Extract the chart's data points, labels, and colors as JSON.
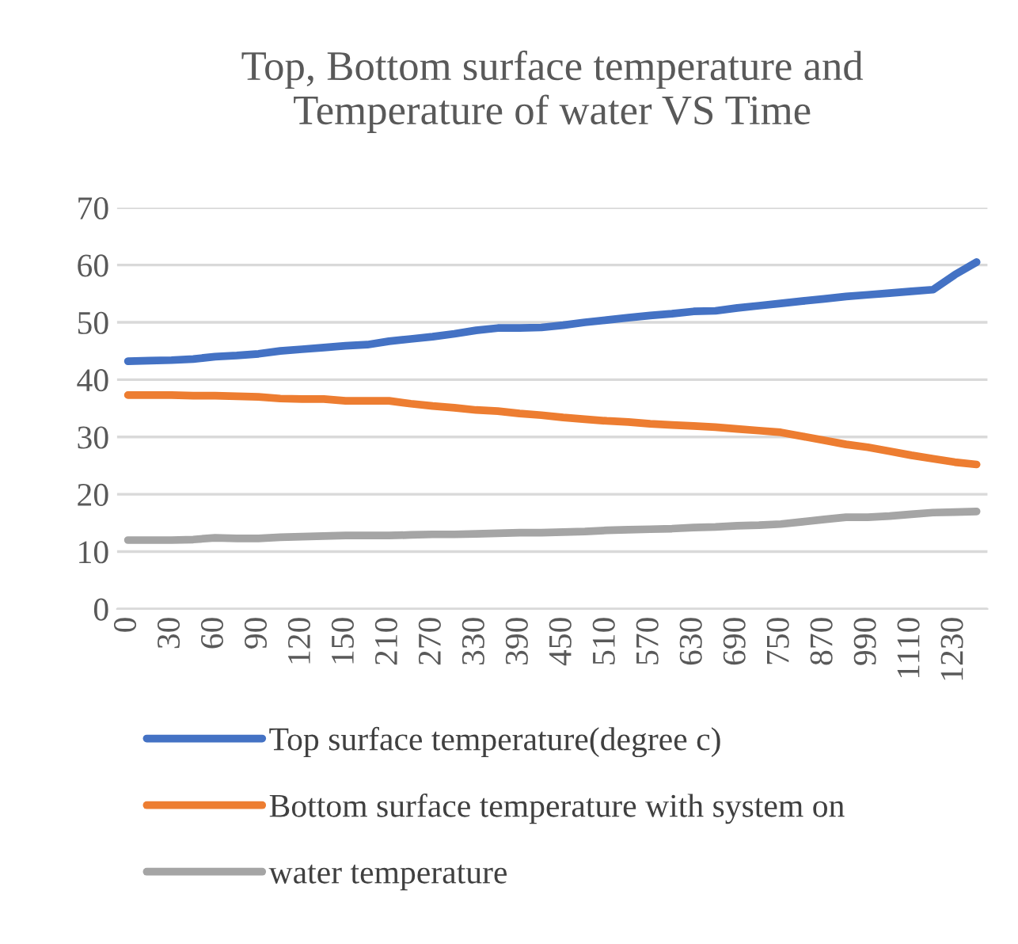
{
  "chart_data": {
    "type": "line",
    "title": "Top, Bottom surface temperature and\nTemperature of water VS Time",
    "categories": [
      "0",
      null,
      "30",
      null,
      "60",
      null,
      "90",
      null,
      "120",
      null,
      "150",
      null,
      "210",
      null,
      "270",
      null,
      "330",
      null,
      "390",
      null,
      "450",
      null,
      "510",
      null,
      "570",
      null,
      "630",
      null,
      "690",
      null,
      "750",
      null,
      "870",
      null,
      "990",
      null,
      "1110",
      null,
      "1230",
      null
    ],
    "series": [
      {
        "name": "Top surface temperature(degree c)",
        "color": "#4472c4",
        "values": [
          43.2,
          43.3,
          43.4,
          43.6,
          44.0,
          44.2,
          44.5,
          45.0,
          45.3,
          45.6,
          45.9,
          46.1,
          46.7,
          47.1,
          47.5,
          48.0,
          48.6,
          49.0,
          49.0,
          49.1,
          49.5,
          50.0,
          50.4,
          50.8,
          51.2,
          51.5,
          51.9,
          52.0,
          52.5,
          52.9,
          53.3,
          53.7,
          54.1,
          54.5,
          54.8,
          55.1,
          55.4,
          55.7,
          58.3,
          60.5
        ]
      },
      {
        "name": "Bottom surface temperature with system on",
        "color": "#ed7d31",
        "values": [
          37.3,
          37.3,
          37.3,
          37.2,
          37.2,
          37.1,
          37.0,
          36.7,
          36.6,
          36.6,
          36.3,
          36.3,
          36.3,
          35.8,
          35.4,
          35.1,
          34.7,
          34.5,
          34.1,
          33.8,
          33.4,
          33.1,
          32.8,
          32.6,
          32.3,
          32.1,
          31.9,
          31.7,
          31.4,
          31.1,
          30.8,
          30.1,
          29.4,
          28.7,
          28.2,
          27.5,
          26.8,
          26.2,
          25.6,
          25.2
        ]
      },
      {
        "name": "water temperature",
        "color": "#a5a5a5",
        "values": [
          12.0,
          12.0,
          12.0,
          12.1,
          12.4,
          12.3,
          12.3,
          12.5,
          12.6,
          12.7,
          12.8,
          12.8,
          12.8,
          12.9,
          13.0,
          13.0,
          13.1,
          13.2,
          13.3,
          13.3,
          13.4,
          13.5,
          13.7,
          13.8,
          13.9,
          14.0,
          14.2,
          14.3,
          14.5,
          14.6,
          14.8,
          15.2,
          15.6,
          16.0,
          16.0,
          16.2,
          16.5,
          16.8,
          16.9,
          17.0
        ]
      }
    ],
    "ylim": [
      0,
      70
    ],
    "yticks": [
      0,
      10,
      20,
      30,
      40,
      50,
      60,
      70
    ],
    "grid": "y",
    "legend": "bottom",
    "marker": "none",
    "line_style": "solid"
  }
}
